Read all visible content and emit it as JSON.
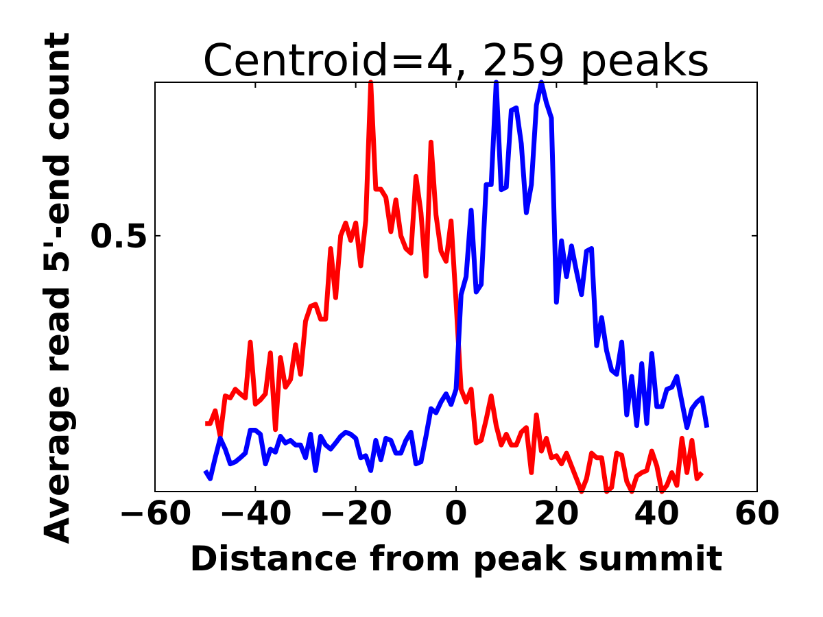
{
  "chart_data": {
    "type": "line",
    "title": "Centroid=4, 259 peaks",
    "xlabel": "Distance from peak summit",
    "ylabel": "Average read 5'-end count",
    "xlim": [
      -60,
      60
    ],
    "ylim": [
      0.0,
      0.8
    ],
    "xticks": [
      -60,
      -40,
      -20,
      0,
      20,
      40,
      60
    ],
    "xtick_labels": [
      "−60",
      "−40",
      "−20",
      "0",
      "20",
      "40",
      "60"
    ],
    "yticks": [
      0.5
    ],
    "ytick_labels": [
      "0.5"
    ],
    "grid": false,
    "x_start": -50,
    "x_step": 1,
    "series": [
      {
        "color": "#ff0000",
        "values": [
          0.133,
          0.133,
          0.158,
          0.108,
          0.187,
          0.183,
          0.2,
          0.191,
          0.183,
          0.292,
          0.171,
          0.179,
          0.191,
          0.271,
          0.121,
          0.262,
          0.204,
          0.219,
          0.287,
          0.229,
          0.333,
          0.362,
          0.366,
          0.337,
          0.337,
          0.475,
          0.379,
          0.5,
          0.525,
          0.491,
          0.525,
          0.441,
          0.53,
          0.8,
          0.591,
          0.591,
          0.575,
          0.508,
          0.57,
          0.5,
          0.475,
          0.466,
          0.616,
          0.545,
          0.421,
          0.683,
          0.541,
          0.47,
          0.45,
          0.529,
          0.37,
          0.2,
          0.175,
          0.2,
          0.095,
          0.1,
          0.141,
          0.187,
          0.129,
          0.091,
          0.112,
          0.091,
          0.091,
          0.116,
          0.125,
          0.037,
          0.15,
          0.079,
          0.104,
          0.066,
          0.07,
          0.054,
          0.075,
          0.05,
          0.025,
          0.0,
          0.025,
          0.075,
          0.066,
          0.066,
          0.0,
          0.008,
          0.075,
          0.071,
          0.02,
          0.0,
          0.03,
          0.037,
          0.041,
          0.079,
          0.05,
          0.0,
          0.012,
          0.037,
          0.012,
          0.104,
          0.037,
          0.1,
          0.025,
          0.037
        ]
      },
      {
        "color": "#0000ff",
        "values": [
          0.041,
          0.025,
          0.066,
          0.104,
          0.083,
          0.054,
          0.058,
          0.066,
          0.075,
          0.12,
          0.12,
          0.112,
          0.054,
          0.083,
          0.077,
          0.108,
          0.095,
          0.1,
          0.091,
          0.091,
          0.066,
          0.112,
          0.041,
          0.108,
          0.091,
          0.083,
          0.095,
          0.108,
          0.116,
          0.112,
          0.104,
          0.066,
          0.07,
          0.041,
          0.1,
          0.062,
          0.104,
          0.1,
          0.075,
          0.075,
          0.1,
          0.116,
          0.054,
          0.058,
          0.108,
          0.162,
          0.154,
          0.175,
          0.191,
          0.17,
          0.2,
          0.385,
          0.42,
          0.55,
          0.39,
          0.405,
          0.6,
          0.6,
          0.8,
          0.59,
          0.595,
          0.745,
          0.75,
          0.68,
          0.545,
          0.6,
          0.755,
          0.8,
          0.76,
          0.73,
          0.37,
          0.49,
          0.42,
          0.48,
          0.43,
          0.385,
          0.47,
          0.475,
          0.285,
          0.34,
          0.275,
          0.237,
          0.229,
          0.292,
          0.15,
          0.225,
          0.129,
          0.25,
          0.133,
          0.27,
          0.166,
          0.166,
          0.2,
          0.204,
          0.225,
          0.175,
          0.125,
          0.162,
          0.175,
          0.183,
          0.125
        ]
      }
    ]
  }
}
